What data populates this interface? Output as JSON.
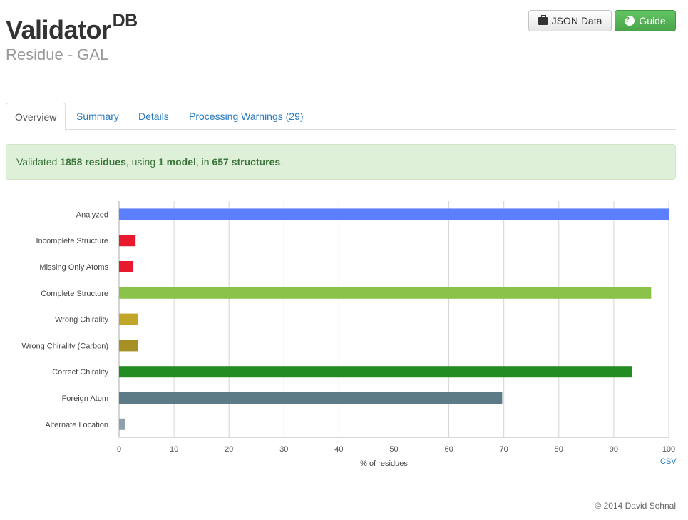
{
  "header": {
    "title": "Validator",
    "title_sup": "DB",
    "subtitle": "Residue - GAL"
  },
  "buttons": {
    "json_label": "JSON Data",
    "guide_label": "Guide",
    "json_icon": "briefcase-icon",
    "guide_icon": "question-circle-icon"
  },
  "tabs": [
    {
      "label": "Overview",
      "active": true
    },
    {
      "label": "Summary",
      "active": false
    },
    {
      "label": "Details",
      "active": false
    },
    {
      "label": "Processing Warnings (29)",
      "active": false
    }
  ],
  "alert": {
    "prefix": "Validated ",
    "residues": "1858 residues",
    "mid1": ", using ",
    "models": "1 model",
    "mid2": ", in ",
    "structures": "657 structures",
    "suffix": "."
  },
  "chart_data": {
    "type": "bar",
    "orientation": "horizontal",
    "categories": [
      "Analyzed",
      "Incomplete Structure",
      "Missing Only Atoms",
      "Complete Structure",
      "Wrong Chirality",
      "Wrong Chirality (Carbon)",
      "Correct Chirality",
      "Foreign Atom",
      "Alternate Location"
    ],
    "values": [
      100,
      3,
      2.6,
      96.8,
      3.4,
      3.4,
      93.3,
      69.7,
      1.1
    ],
    "colors": [
      "#5b7fff",
      "#e8192c",
      "#e8192c",
      "#8bc34a",
      "#c2a62a",
      "#a68f24",
      "#228b22",
      "#5d7b87",
      "#8fa1ad"
    ],
    "xlabel": "% of residues",
    "xlim": [
      0,
      100
    ],
    "xticks": [
      0,
      10,
      20,
      30,
      40,
      50,
      60,
      70,
      80,
      90,
      100
    ],
    "grid": true,
    "legend": "none"
  },
  "links": {
    "csv": "CSV"
  },
  "footer": {
    "copyright": "© 2014 David Sehnal"
  }
}
